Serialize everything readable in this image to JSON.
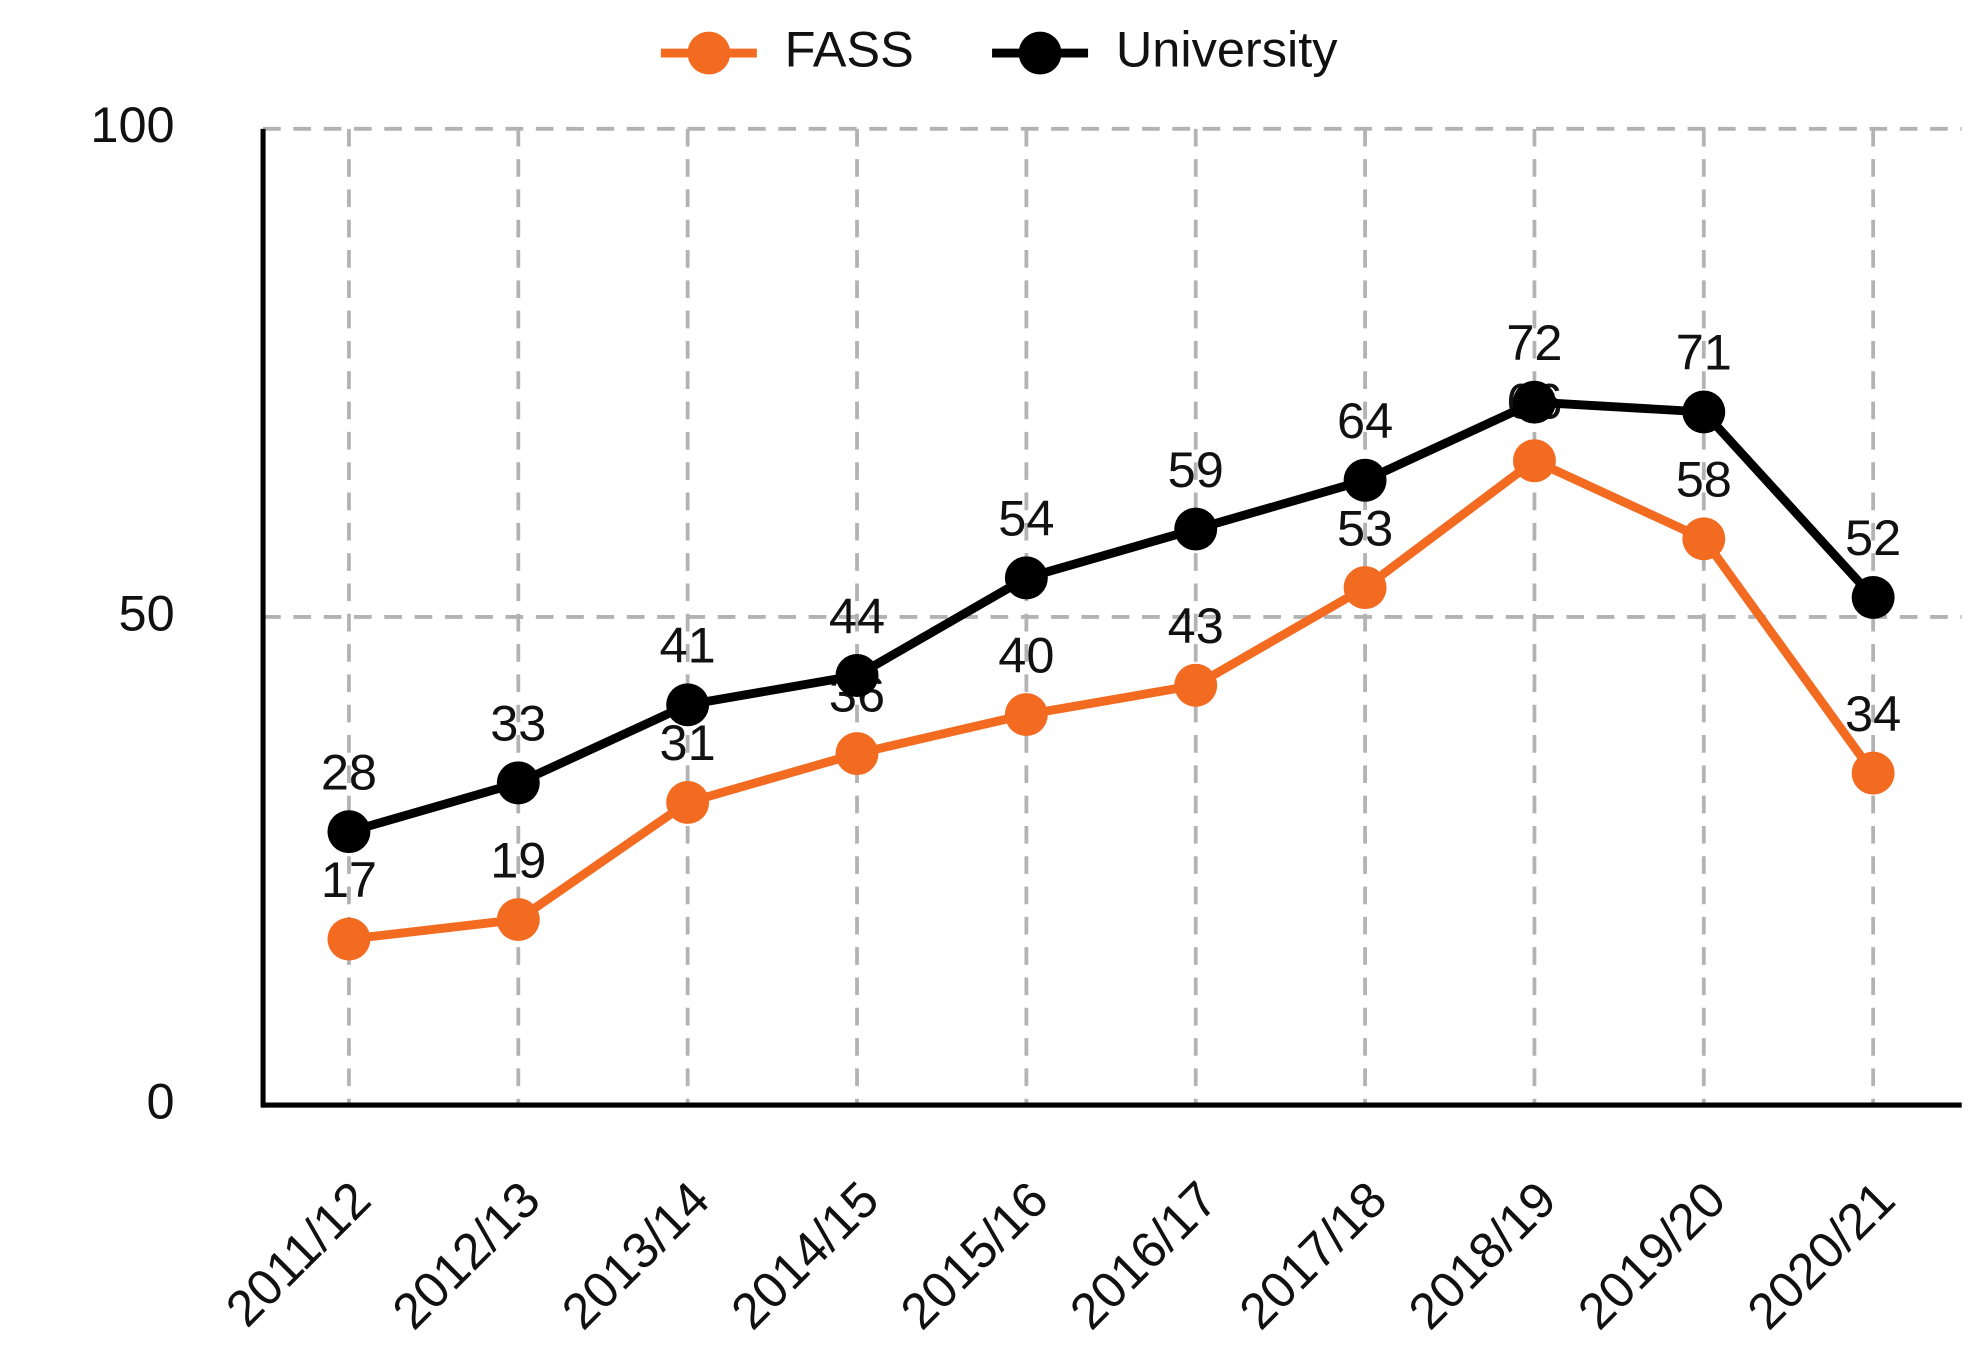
{
  "chart_data": {
    "type": "line",
    "categories": [
      "2011/12",
      "2012/13",
      "2013/14",
      "2014/15",
      "2015/16",
      "2016/17",
      "2017/18",
      "2018/19",
      "2019/20",
      "2020/21"
    ],
    "series": [
      {
        "name": "FASS",
        "color": "#f26b21",
        "values": [
          17,
          19,
          31,
          36,
          40,
          43,
          53,
          66,
          58,
          34
        ]
      },
      {
        "name": "University",
        "color": "#000000",
        "values": [
          28,
          33,
          41,
          44,
          54,
          59,
          64,
          72,
          71,
          52
        ]
      }
    ],
    "ylim": [
      0,
      100
    ],
    "yticks": [
      0,
      50,
      100
    ],
    "grid": true,
    "legend": "top"
  }
}
